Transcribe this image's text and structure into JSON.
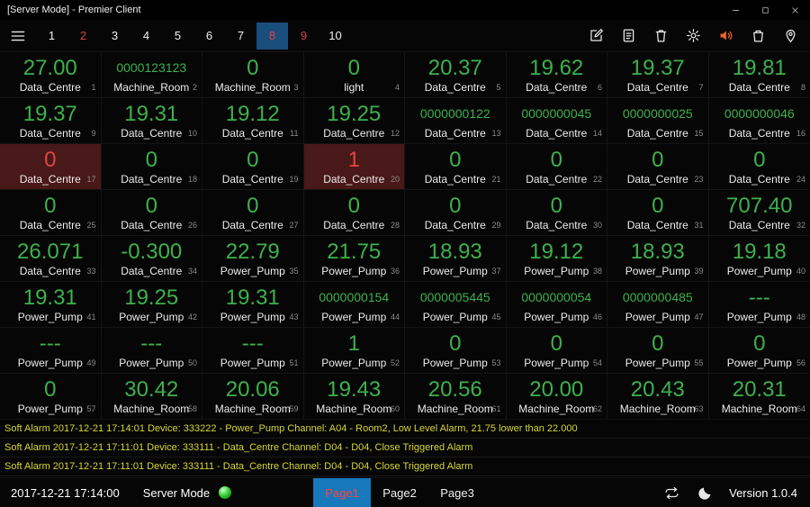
{
  "window": {
    "title": "[Server Mode] - Premier Client",
    "control_icons": [
      "minimize-icon",
      "maximize-icon",
      "close-icon"
    ]
  },
  "toolbar": {
    "pages": [
      {
        "label": "1",
        "state": "normal"
      },
      {
        "label": "2",
        "state": "alert"
      },
      {
        "label": "3",
        "state": "normal"
      },
      {
        "label": "4",
        "state": "normal"
      },
      {
        "label": "5",
        "state": "normal"
      },
      {
        "label": "6",
        "state": "normal"
      },
      {
        "label": "7",
        "state": "normal"
      },
      {
        "label": "8",
        "state": "selected"
      },
      {
        "label": "9",
        "state": "alert"
      },
      {
        "label": "10",
        "state": "normal"
      }
    ],
    "icons": [
      "edit-icon",
      "notes-icon",
      "trash-icon",
      "settings-gear-icon",
      "speaker-icon",
      "bin-icon",
      "location-pin-icon"
    ]
  },
  "tiles": [
    {
      "value": "27.00",
      "label": "Data_Centre",
      "index": "1",
      "style": "normal"
    },
    {
      "value": "0000123123",
      "label": "Machine_Room",
      "index": "2",
      "style": "small"
    },
    {
      "value": "0",
      "label": "Machine_Room",
      "index": "3",
      "style": "normal"
    },
    {
      "value": "0",
      "label": "light",
      "index": "4",
      "style": "normal"
    },
    {
      "value": "20.37",
      "label": "Data_Centre",
      "index": "5",
      "style": "normal"
    },
    {
      "value": "19.62",
      "label": "Data_Centre",
      "index": "6",
      "style": "normal"
    },
    {
      "value": "19.37",
      "label": "Data_Centre",
      "index": "7",
      "style": "normal"
    },
    {
      "value": "19.81",
      "label": "Data_Centre",
      "index": "8",
      "style": "normal"
    },
    {
      "value": "19.37",
      "label": "Data_Centre",
      "index": "9",
      "style": "normal"
    },
    {
      "value": "19.31",
      "label": "Data_Centre",
      "index": "10",
      "style": "normal"
    },
    {
      "value": "19.12",
      "label": "Data_Centre",
      "index": "11",
      "style": "normal"
    },
    {
      "value": "19.25",
      "label": "Data_Centre",
      "index": "12",
      "style": "normal"
    },
    {
      "value": "0000000122",
      "label": "Data_Centre",
      "index": "13",
      "style": "small"
    },
    {
      "value": "0000000045",
      "label": "Data_Centre",
      "index": "14",
      "style": "small"
    },
    {
      "value": "0000000025",
      "label": "Data_Centre",
      "index": "15",
      "style": "small"
    },
    {
      "value": "0000000046",
      "label": "Data_Centre",
      "index": "16",
      "style": "small"
    },
    {
      "value": "0",
      "label": "Data_Centre",
      "index": "17",
      "style": "alarm"
    },
    {
      "value": "0",
      "label": "Data_Centre",
      "index": "18",
      "style": "normal"
    },
    {
      "value": "0",
      "label": "Data_Centre",
      "index": "19",
      "style": "normal"
    },
    {
      "value": "1",
      "label": "Data_Centre",
      "index": "20",
      "style": "alarm"
    },
    {
      "value": "0",
      "label": "Data_Centre",
      "index": "21",
      "style": "normal"
    },
    {
      "value": "0",
      "label": "Data_Centre",
      "index": "22",
      "style": "normal"
    },
    {
      "value": "0",
      "label": "Data_Centre",
      "index": "23",
      "style": "normal"
    },
    {
      "value": "0",
      "label": "Data_Centre",
      "index": "24",
      "style": "normal"
    },
    {
      "value": "0",
      "label": "Data_Centre",
      "index": "25",
      "style": "normal"
    },
    {
      "value": "0",
      "label": "Data_Centre",
      "index": "26",
      "style": "normal"
    },
    {
      "value": "0",
      "label": "Data_Centre",
      "index": "27",
      "style": "normal"
    },
    {
      "value": "0",
      "label": "Data_Centre",
      "index": "28",
      "style": "normal"
    },
    {
      "value": "0",
      "label": "Data_Centre",
      "index": "29",
      "style": "normal"
    },
    {
      "value": "0",
      "label": "Data_Centre",
      "index": "30",
      "style": "normal"
    },
    {
      "value": "0",
      "label": "Data_Centre",
      "index": "31",
      "style": "normal"
    },
    {
      "value": "707.40",
      "label": "Data_Centre",
      "index": "32",
      "style": "normal"
    },
    {
      "value": "26.071",
      "label": "Data_Centre",
      "index": "33",
      "style": "normal"
    },
    {
      "value": "-0.300",
      "label": "Data_Centre",
      "index": "34",
      "style": "normal"
    },
    {
      "value": "22.79",
      "label": "Power_Pump",
      "index": "35",
      "style": "normal"
    },
    {
      "value": "21.75",
      "label": "Power_Pump",
      "index": "36",
      "style": "normal"
    },
    {
      "value": "18.93",
      "label": "Power_Pump",
      "index": "37",
      "style": "normal"
    },
    {
      "value": "19.12",
      "label": "Power_Pump",
      "index": "38",
      "style": "normal"
    },
    {
      "value": "18.93",
      "label": "Power_Pump",
      "index": "39",
      "style": "normal"
    },
    {
      "value": "19.18",
      "label": "Power_Pump",
      "index": "40",
      "style": "normal"
    },
    {
      "value": "19.31",
      "label": "Power_Pump",
      "index": "41",
      "style": "normal"
    },
    {
      "value": "19.25",
      "label": "Power_Pump",
      "index": "42",
      "style": "normal"
    },
    {
      "value": "19.31",
      "label": "Power_Pump",
      "index": "43",
      "style": "normal"
    },
    {
      "value": "0000000154",
      "label": "Power_Pump",
      "index": "44",
      "style": "small"
    },
    {
      "value": "0000005445",
      "label": "Power_Pump",
      "index": "45",
      "style": "small"
    },
    {
      "value": "0000000054",
      "label": "Power_Pump",
      "index": "46",
      "style": "small"
    },
    {
      "value": "0000000485",
      "label": "Power_Pump",
      "index": "47",
      "style": "small"
    },
    {
      "value": "---",
      "label": "Power_Pump",
      "index": "48",
      "style": "normal"
    },
    {
      "value": "---",
      "label": "Power_Pump",
      "index": "49",
      "style": "normal"
    },
    {
      "value": "---",
      "label": "Power_Pump",
      "index": "50",
      "style": "normal"
    },
    {
      "value": "---",
      "label": "Power_Pump",
      "index": "51",
      "style": "normal"
    },
    {
      "value": "1",
      "label": "Power_Pump",
      "index": "52",
      "style": "normal"
    },
    {
      "value": "0",
      "label": "Power_Pump",
      "index": "53",
      "style": "normal"
    },
    {
      "value": "0",
      "label": "Power_Pump",
      "index": "54",
      "style": "normal"
    },
    {
      "value": "0",
      "label": "Power_Pump",
      "index": "55",
      "style": "normal"
    },
    {
      "value": "0",
      "label": "Power_Pump",
      "index": "56",
      "style": "normal"
    },
    {
      "value": "0",
      "label": "Power_Pump",
      "index": "57",
      "style": "normal"
    },
    {
      "value": "30.42",
      "label": "Machine_Room",
      "index": "58",
      "style": "normal"
    },
    {
      "value": "20.06",
      "label": "Machine_Room",
      "index": "59",
      "style": "normal"
    },
    {
      "value": "19.43",
      "label": "Machine_Room",
      "index": "60",
      "style": "normal"
    },
    {
      "value": "20.56",
      "label": "Machine_Room",
      "index": "61",
      "style": "normal"
    },
    {
      "value": "20.00",
      "label": "Machine_Room",
      "index": "62",
      "style": "normal"
    },
    {
      "value": "20.43",
      "label": "Machine_Room",
      "index": "63",
      "style": "normal"
    },
    {
      "value": "20.31",
      "label": "Machine_Room",
      "index": "64",
      "style": "normal"
    }
  ],
  "alarms": [
    "Soft Alarm 2017-12-21 17:14:01 Device: 333222 - Power_Pump Channel: A04 - Room2, Low Level Alarm, 21.75 lower than 22.000",
    "Soft Alarm 2017-12-21 17:11:01 Device: 333111 - Data_Centre Channel: D04 - D04, Close Triggered Alarm",
    "Soft Alarm 2017-12-21 17:11:01 Device: 333111 - Data_Centre Channel: D04 - D04, Close Triggered Alarm"
  ],
  "statusbar": {
    "datetime": "2017-12-21 17:14:00",
    "mode_label": "Server Mode",
    "tabs": [
      {
        "label": "Page1",
        "active": true
      },
      {
        "label": "Page2",
        "active": false
      },
      {
        "label": "Page3",
        "active": false
      }
    ],
    "icons": [
      "sync-icon",
      "moon-icon"
    ],
    "version": "Version 1.0.4"
  },
  "colors": {
    "value_green": "#3db14c",
    "value_red": "#e04545",
    "alarm_tile_bg": "#491818",
    "alarm_text_yellow": "#d6d636",
    "selected_page_bg": "#1a4e7c",
    "active_tab_bg": "#1878bc",
    "active_tab_text": "#ff4343",
    "speaker_orange": "#e8622a",
    "indicator_green": "#3ad23a"
  }
}
